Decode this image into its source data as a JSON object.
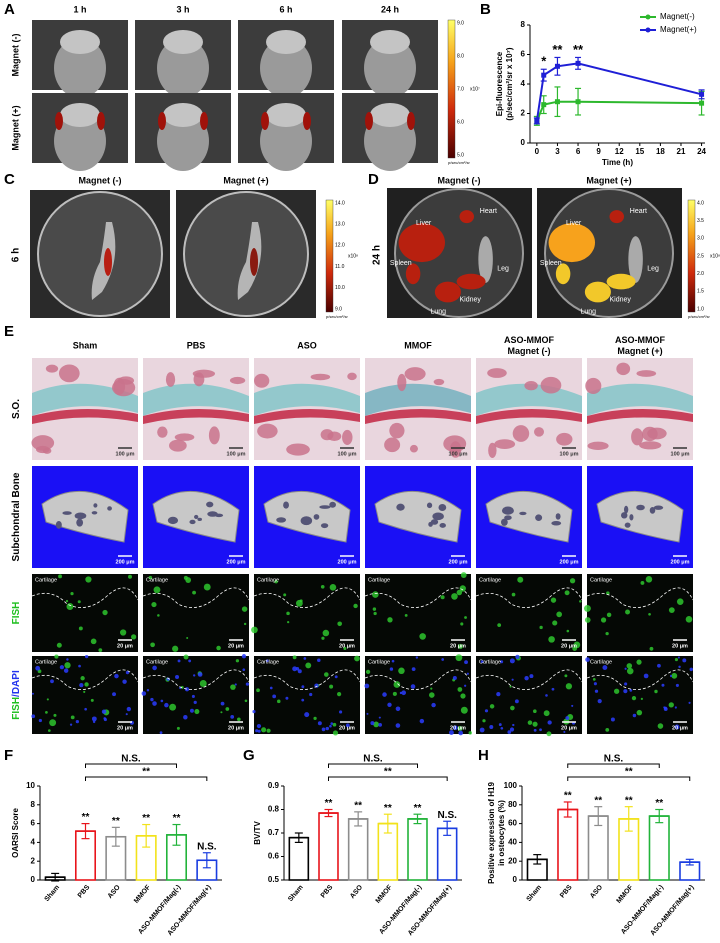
{
  "panels": {
    "A": {
      "letter": "A",
      "columns": [
        "1 h",
        "3 h",
        "6 h",
        "24 h"
      ],
      "rows": [
        "Magnet (-)",
        "Magnet (+)"
      ],
      "colorbar": [
        "9.0",
        "8.0",
        "7.0",
        "6.0",
        "5.0"
      ],
      "colorbar_unit": "x10⁷",
      "colorbar_note": "p/sec/cm²/sr"
    },
    "C": {
      "letter": "C",
      "columns": [
        "Magnet (-)",
        "Magnet (+)"
      ],
      "row": "6 h",
      "colorbar": [
        "14.0",
        "13.0",
        "12.0",
        "11.0",
        "10.0",
        "9.0"
      ],
      "colorbar_unit": "x10⁸",
      "colorbar_note": "p/sec/cm²/sr"
    },
    "D": {
      "letter": "D",
      "columns": [
        "Magnet (-)",
        "Magnet (+)"
      ],
      "row": "24 h",
      "organs": [
        "Liver",
        "Heart",
        "Spleen",
        "Leg",
        "Lung",
        "Kidney"
      ],
      "colorbar": [
        "4.0",
        "3.5",
        "3.0",
        "2.5",
        "2.0",
        "1.5",
        "1.0"
      ],
      "colorbar_unit": "x10⁸",
      "colorbar_note": "p/sec/cm²/sr"
    },
    "E": {
      "letter": "E",
      "columns": [
        [
          "Sham"
        ],
        [
          "PBS"
        ],
        [
          "ASO"
        ],
        [
          "MMOF"
        ],
        [
          "ASO-MMOF",
          "Magnet (-)"
        ],
        [
          "ASO-MMOF",
          "Magnet (+)"
        ]
      ],
      "rows": [
        [
          "S.O."
        ],
        [
          "Subchondral Bone"
        ],
        [
          "FISH"
        ],
        [
          "FISH",
          "/DAPI"
        ]
      ],
      "scale_bars": [
        "100 μm",
        "200 μm",
        "20 μm",
        "20 μm"
      ],
      "tissue_label": "Cartilage"
    }
  },
  "chart_data": [
    {
      "type": "line",
      "letter": "B",
      "ylabel": [
        "Epi-fluorescence",
        "(p/sec/cm²/sr x 10⁷)"
      ],
      "xlabel": "Time (h)",
      "x": [
        0,
        1,
        3,
        6,
        24
      ],
      "xlim": [
        -1,
        24.5
      ],
      "xticks": [
        0,
        3,
        6,
        9,
        12,
        15,
        18,
        21,
        24
      ],
      "ylim": [
        0,
        8
      ],
      "yticks": [
        0,
        2,
        4,
        6,
        8
      ],
      "legend": "upper right",
      "series": [
        {
          "name": "Magnet(-)",
          "color": "#2db82d",
          "values": [
            1.5,
            2.6,
            2.8,
            2.8,
            2.7
          ],
          "errors": [
            0.3,
            0.6,
            1.0,
            0.9,
            0.8
          ]
        },
        {
          "name": "Magnet(+)",
          "color": "#1f1fd6",
          "values": [
            1.5,
            4.6,
            5.2,
            5.4,
            3.3
          ],
          "errors": [
            0.2,
            0.4,
            0.6,
            0.4,
            0.3
          ]
        }
      ],
      "annotations": [
        {
          "text": "*",
          "x": 1
        },
        {
          "text": "**",
          "x": 3
        },
        {
          "text": "**",
          "x": 6
        }
      ]
    },
    {
      "type": "bar",
      "letter": "F",
      "ylabel": "OARSI Score",
      "categories": [
        "Sham",
        "PBS",
        "ASO",
        "MMOF",
        "ASO-MMOF/Mag(-)",
        "ASO-MMOF/Mag(+)"
      ],
      "colors": [
        "#000000",
        "#e8141b",
        "#8c8c8c",
        "#f2e21a",
        "#22b33a",
        "#1a3de0"
      ],
      "values": [
        0.3,
        5.2,
        4.6,
        4.7,
        4.8,
        2.1
      ],
      "errors": [
        0.4,
        0.8,
        1.0,
        1.2,
        1.1,
        0.8
      ],
      "ylim": [
        0,
        10
      ],
      "yticks": [
        0,
        2,
        4,
        6,
        8,
        10
      ],
      "bar_annotations": [
        null,
        "**",
        "**",
        "**",
        "**",
        "N.S."
      ],
      "brackets": [
        "N.S.",
        "**"
      ]
    },
    {
      "type": "bar",
      "letter": "G",
      "ylabel": "BV/TV",
      "categories": [
        "Sham",
        "PBS",
        "ASO",
        "MMOF",
        "ASO-MMOF/Mag(-)",
        "ASO-MMOF/Mag(+)"
      ],
      "colors": [
        "#000000",
        "#e8141b",
        "#8c8c8c",
        "#f2e21a",
        "#22b33a",
        "#1a3de0"
      ],
      "values": [
        0.68,
        0.785,
        0.76,
        0.74,
        0.76,
        0.72
      ],
      "errors": [
        0.02,
        0.015,
        0.03,
        0.04,
        0.02,
        0.03
      ],
      "ylim": [
        0.5,
        0.9
      ],
      "yticks": [
        0.5,
        0.6,
        0.7,
        0.8,
        0.9
      ],
      "bar_annotations": [
        null,
        "**",
        "**",
        "**",
        "**",
        "N.S."
      ],
      "brackets": [
        "N.S.",
        "**"
      ]
    },
    {
      "type": "bar",
      "letter": "H",
      "ylabel": [
        "Positive expression of H19",
        "in osteocytes (%)"
      ],
      "categories": [
        "Sham",
        "PBS",
        "ASO",
        "MMOF",
        "ASO-MMOF/Mag(-)",
        "ASO-MMOF/Mag(+)"
      ],
      "colors": [
        "#000000",
        "#e8141b",
        "#8c8c8c",
        "#f2e21a",
        "#22b33a",
        "#1a3de0"
      ],
      "values": [
        22,
        75,
        68,
        65,
        68,
        19
      ],
      "errors": [
        5,
        8,
        10,
        13,
        7,
        3
      ],
      "ylim": [
        0,
        100
      ],
      "yticks": [
        0,
        20,
        40,
        60,
        80,
        100
      ],
      "bar_annotations": [
        null,
        "**",
        "**",
        "**",
        "**",
        null
      ],
      "brackets": [
        "N.S.",
        "**"
      ]
    }
  ]
}
